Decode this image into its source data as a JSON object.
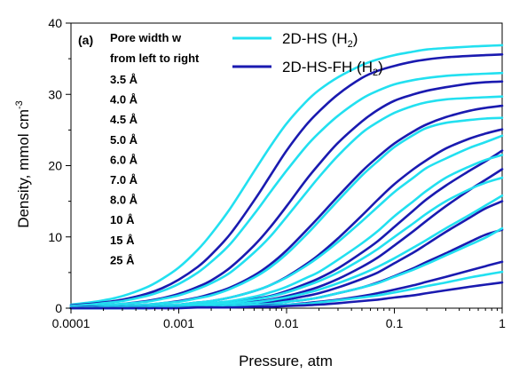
{
  "chart_data": {
    "type": "line",
    "panel_label": "(a)",
    "title": "",
    "xlabel": "Pressure, atm",
    "ylabel": "Density, mmol cm",
    "ylabel_sup": "-3",
    "xscale": "log",
    "xlim": [
      0.0001,
      1
    ],
    "ylim": [
      0,
      40
    ],
    "x_ticks": [
      0.0001,
      0.001,
      0.01,
      0.1,
      1
    ],
    "x_tick_labels": [
      "0.0001",
      "0.001",
      "0.01",
      "0.1",
      "1"
    ],
    "y_ticks": [
      0,
      10,
      20,
      30,
      40
    ],
    "y_tick_labels": [
      "0",
      "10",
      "20",
      "30",
      "40"
    ],
    "grid": false,
    "legend_position": "top-right",
    "legend": [
      {
        "label": "2D-HS (H",
        "sub": "2",
        "tail": ")",
        "color": "#22e0f0"
      },
      {
        "label": "2D-HS-FH (H",
        "sub": "2",
        "tail": ")",
        "color": "#1a1ab0"
      }
    ],
    "annotation": {
      "header": [
        "Pore width w",
        "from left to right"
      ],
      "widths": [
        "3.5 Å",
        "4.0 Å",
        "4.5 Å",
        "5.0 Å",
        "6.0 Å",
        "7.0 Å",
        "8.0 Å",
        "10 Å",
        "15 Å",
        "25 Å"
      ]
    },
    "x": [
      0.0001,
      0.00015,
      0.0002,
      0.0003,
      0.0005,
      0.0007,
      0.001,
      0.0015,
      0.002,
      0.003,
      0.005,
      0.007,
      0.01,
      0.015,
      0.02,
      0.03,
      0.05,
      0.07,
      0.1,
      0.15,
      0.2,
      0.3,
      0.5,
      0.7,
      1
    ],
    "series": [
      {
        "name": "2D-HS (H2)",
        "width": "3.5 Å",
        "color": "#22e0f0",
        "values": [
          0.5,
          0.8,
          1.1,
          1.7,
          2.9,
          4.1,
          5.7,
          8.2,
          10.4,
          14.0,
          19.2,
          22.6,
          25.9,
          28.9,
          30.6,
          32.4,
          34.1,
          34.9,
          35.5,
          36.0,
          36.3,
          36.5,
          36.7,
          36.8,
          36.9
        ]
      },
      {
        "name": "2D-HS-FH (H2)",
        "width": "3.5 Å",
        "color": "#1a1ab0",
        "values": [
          0.4,
          0.6,
          0.8,
          1.2,
          2.0,
          2.8,
          4.0,
          5.8,
          7.5,
          10.4,
          15.1,
          18.5,
          22.1,
          25.6,
          27.6,
          30.0,
          32.3,
          33.3,
          34.0,
          34.6,
          34.9,
          35.2,
          35.4,
          35.5,
          35.6
        ]
      },
      {
        "name": "2D-HS (H2)",
        "width": "4.0 Å",
        "color": "#22e0f0",
        "values": [
          0.3,
          0.5,
          0.7,
          1.0,
          1.7,
          2.4,
          3.4,
          5.0,
          6.5,
          9.0,
          13.2,
          16.2,
          19.3,
          22.6,
          24.6,
          27.0,
          29.4,
          30.5,
          31.4,
          32.0,
          32.3,
          32.6,
          32.8,
          32.9,
          33.0
        ]
      },
      {
        "name": "2D-HS-FH (H2)",
        "width": "4.0 Å",
        "color": "#1a1ab0",
        "values": [
          0.2,
          0.3,
          0.4,
          0.6,
          1.0,
          1.4,
          2.0,
          3.0,
          3.9,
          5.7,
          8.8,
          11.3,
          14.3,
          17.9,
          20.2,
          23.2,
          26.2,
          27.8,
          29.1,
          30.0,
          30.5,
          31.0,
          31.5,
          31.7,
          31.8
        ]
      },
      {
        "name": "2D-HS (H2)",
        "width": "4.5 Å",
        "color": "#22e0f0",
        "values": [
          0.2,
          0.3,
          0.4,
          0.6,
          0.9,
          1.3,
          1.8,
          2.7,
          3.5,
          5.0,
          7.8,
          10.0,
          12.8,
          16.1,
          18.4,
          21.4,
          24.6,
          26.1,
          27.4,
          28.4,
          28.9,
          29.3,
          29.5,
          29.6,
          29.7
        ]
      },
      {
        "name": "2D-HS-FH (H2)",
        "width": "4.5 Å",
        "color": "#1a1ab0",
        "values": [
          0.1,
          0.2,
          0.2,
          0.3,
          0.5,
          0.7,
          1.0,
          1.5,
          2.0,
          2.9,
          4.6,
          6.1,
          8.1,
          10.8,
          12.8,
          15.7,
          19.2,
          21.2,
          23.1,
          24.8,
          25.8,
          26.8,
          27.7,
          28.1,
          28.4
        ]
      },
      {
        "name": "2D-HS (H2)",
        "width": "5.0 Å",
        "color": "#22e0f0",
        "values": [
          0.1,
          0.1,
          0.2,
          0.3,
          0.5,
          0.7,
          0.9,
          1.4,
          1.8,
          2.7,
          4.3,
          5.7,
          7.6,
          10.2,
          12.2,
          15.1,
          18.6,
          20.6,
          22.6,
          24.3,
          25.3,
          26.0,
          26.4,
          26.6,
          26.7
        ]
      },
      {
        "name": "2D-HS-FH (H2)",
        "width": "5.0 Å",
        "color": "#1a1ab0",
        "values": [
          0.1,
          0.1,
          0.1,
          0.2,
          0.3,
          0.4,
          0.5,
          0.8,
          1.0,
          1.5,
          2.4,
          3.2,
          4.4,
          6.1,
          7.5,
          9.8,
          13.0,
          15.2,
          17.4,
          19.5,
          20.8,
          22.4,
          23.8,
          24.5,
          25.1
        ]
      },
      {
        "name": "2D-HS (H2)",
        "width": "6.0 Å",
        "color": "#22e0f0",
        "values": [
          0.1,
          0.1,
          0.1,
          0.2,
          0.3,
          0.4,
          0.5,
          0.8,
          1.0,
          1.5,
          2.4,
          3.2,
          4.3,
          5.9,
          7.2,
          9.3,
          12.2,
          14.2,
          16.3,
          18.3,
          19.7,
          21.0,
          22.5,
          23.3,
          24.2
        ]
      },
      {
        "name": "2D-HS-FH (H2)",
        "width": "6.0 Å",
        "color": "#1a1ab0",
        "values": [
          0.0,
          0.1,
          0.1,
          0.1,
          0.2,
          0.2,
          0.3,
          0.4,
          0.5,
          0.8,
          1.3,
          1.7,
          2.4,
          3.4,
          4.2,
          5.6,
          7.8,
          9.4,
          11.4,
          13.7,
          15.3,
          17.2,
          19.3,
          20.6,
          22.1
        ]
      },
      {
        "name": "2D-HS (H2)",
        "width": "7.0 Å",
        "color": "#22e0f0",
        "values": [
          0.0,
          0.1,
          0.1,
          0.1,
          0.2,
          0.3,
          0.4,
          0.5,
          0.7,
          1.0,
          1.6,
          2.2,
          3.0,
          4.2,
          5.1,
          6.8,
          9.1,
          10.8,
          12.9,
          15.0,
          16.5,
          18.3,
          19.9,
          20.8,
          21.5
        ]
      },
      {
        "name": "2D-HS-FH (H2)",
        "width": "7.0 Å",
        "color": "#1a1ab0",
        "values": [
          0.0,
          0.0,
          0.1,
          0.1,
          0.1,
          0.2,
          0.2,
          0.3,
          0.4,
          0.6,
          0.9,
          1.2,
          1.7,
          2.4,
          3.0,
          4.1,
          5.8,
          7.1,
          8.8,
          10.8,
          12.3,
          14.3,
          16.6,
          18.0,
          19.5
        ]
      },
      {
        "name": "2D-HS (H2)",
        "width": "8.0 Å",
        "color": "#22e0f0",
        "values": [
          0.0,
          0.0,
          0.1,
          0.1,
          0.1,
          0.2,
          0.3,
          0.4,
          0.5,
          0.7,
          1.2,
          1.6,
          2.2,
          3.1,
          3.8,
          5.0,
          6.9,
          8.3,
          10.0,
          11.9,
          13.3,
          15.0,
          16.7,
          17.6,
          18.3
        ]
      },
      {
        "name": "2D-HS-FH (H2)",
        "width": "8.0 Å",
        "color": "#1a1ab0",
        "values": [
          0.0,
          0.0,
          0.0,
          0.1,
          0.1,
          0.1,
          0.2,
          0.2,
          0.3,
          0.4,
          0.7,
          0.9,
          1.2,
          1.7,
          2.1,
          2.9,
          4.1,
          5.0,
          6.3,
          7.8,
          9.0,
          10.7,
          12.7,
          14.0,
          15.0
        ]
      },
      {
        "name": "2D-HS (H2)",
        "width": "10 Å",
        "color": "#22e0f0",
        "values": [
          0.0,
          0.0,
          0.0,
          0.1,
          0.1,
          0.1,
          0.2,
          0.3,
          0.4,
          0.5,
          0.8,
          1.1,
          1.5,
          2.1,
          2.6,
          3.5,
          4.8,
          5.8,
          7.0,
          8.5,
          9.6,
          11.2,
          13.1,
          14.4,
          15.8
        ]
      },
      {
        "name": "2D-HS-FH (H2)",
        "width": "10 Å",
        "color": "#1a1ab0",
        "values": [
          0.0,
          0.0,
          0.0,
          0.0,
          0.1,
          0.1,
          0.1,
          0.2,
          0.2,
          0.3,
          0.5,
          0.6,
          0.9,
          1.2,
          1.5,
          2.1,
          2.9,
          3.6,
          4.5,
          5.6,
          6.5,
          7.7,
          9.3,
          10.3,
          11.0
        ]
      },
      {
        "name": "2D-HS (H2)",
        "width": "15 Å",
        "color": "#22e0f0",
        "values": [
          0.0,
          0.0,
          0.0,
          0.0,
          0.1,
          0.1,
          0.1,
          0.2,
          0.2,
          0.3,
          0.5,
          0.6,
          0.9,
          1.2,
          1.5,
          2.1,
          2.9,
          3.5,
          4.4,
          5.4,
          6.2,
          7.4,
          8.9,
          9.9,
          11.2
        ]
      },
      {
        "name": "2D-HS-FH (H2)",
        "width": "15 Å",
        "color": "#1a1ab0",
        "values": [
          0.0,
          0.0,
          0.0,
          0.0,
          0.0,
          0.1,
          0.1,
          0.1,
          0.1,
          0.2,
          0.3,
          0.4,
          0.5,
          0.7,
          0.9,
          1.2,
          1.7,
          2.1,
          2.6,
          3.2,
          3.7,
          4.4,
          5.3,
          5.9,
          6.5
        ]
      },
      {
        "name": "2D-HS (H2)",
        "width": "25 Å",
        "color": "#22e0f0",
        "values": [
          0.0,
          0.0,
          0.0,
          0.0,
          0.0,
          0.1,
          0.1,
          0.1,
          0.1,
          0.2,
          0.3,
          0.3,
          0.5,
          0.6,
          0.8,
          1.1,
          1.5,
          1.8,
          2.2,
          2.7,
          3.1,
          3.6,
          4.3,
          4.7,
          5.1
        ]
      },
      {
        "name": "2D-HS-FH (H2)",
        "width": "25 Å",
        "color": "#1a1ab0",
        "values": [
          0.0,
          0.0,
          0.0,
          0.0,
          0.0,
          0.0,
          0.0,
          0.1,
          0.1,
          0.1,
          0.2,
          0.2,
          0.3,
          0.4,
          0.5,
          0.7,
          1.0,
          1.2,
          1.5,
          1.8,
          2.1,
          2.5,
          3.0,
          3.3,
          3.6
        ]
      }
    ]
  }
}
